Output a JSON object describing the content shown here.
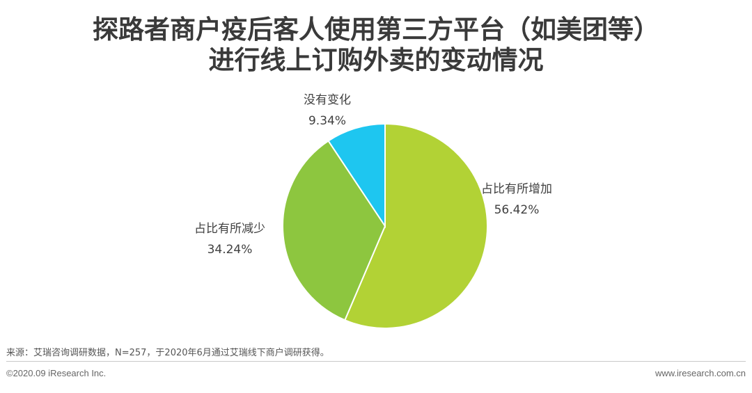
{
  "chart_data": {
    "type": "pie",
    "title_line1": "探路者商户疫后客人使用第三方平台（如美团等）",
    "title_line2": "进行线上订购外卖的变动情况",
    "slices": [
      {
        "label": "占比有所增加",
        "value": 56.42,
        "value_text": "56.42%",
        "color": "#b2d235"
      },
      {
        "label": "占比有所减少",
        "value": 34.24,
        "value_text": "34.24%",
        "color": "#8dc63f"
      },
      {
        "label": "没有变化",
        "value": 9.34,
        "value_text": "9.34%",
        "color": "#1ec6f0"
      }
    ]
  },
  "footer": {
    "source": "来源：艾瑞咨询调研数据，N=257，于2020年6月通过艾瑞线下商户调研获得。",
    "copyright": "©2020.09 iResearch Inc.",
    "website": "www.iresearch.com.cn"
  }
}
